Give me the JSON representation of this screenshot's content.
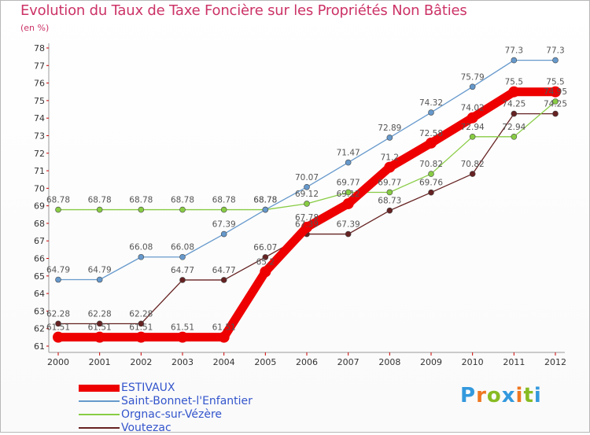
{
  "chart_data": {
    "type": "line",
    "title": "Evolution du Taux de Taxe Foncière sur les Propriétés Non Bâties",
    "subtitle": "(en %)",
    "xlabel": "",
    "ylabel": "(en %)",
    "x": [
      "2000",
      "2001",
      "2002",
      "2003",
      "2004",
      "2005",
      "2006",
      "2007",
      "2008",
      "2009",
      "2010",
      "2011",
      "2012"
    ],
    "ylim": [
      61,
      78
    ],
    "yticks": [
      61,
      62,
      63,
      64,
      65,
      66,
      67,
      68,
      69,
      70,
      71,
      72,
      73,
      74,
      75,
      76,
      77,
      78
    ],
    "grid": false,
    "legend_position": "bottom-left",
    "series": [
      {
        "name": "ESTIVAUX",
        "color": "#ee0000",
        "width": 11,
        "marker": 7,
        "values": [
          61.51,
          61.51,
          61.51,
          61.51,
          61.51,
          65.24,
          67.78,
          69.12,
          71.2,
          72.58,
          74.02,
          75.5,
          75.5
        ],
        "labels": [
          "61.51",
          "61.51",
          "61.51",
          "61.51",
          "61.51",
          "65.2",
          "67.78",
          "69.12",
          "71.2",
          "72.58",
          "74.02",
          "75.5",
          "75.5"
        ]
      },
      {
        "name": "Saint-Bonnet-l'Enfantier",
        "color": "#6699cc",
        "width": 1.3,
        "marker": 3.5,
        "values": [
          64.79,
          64.79,
          66.08,
          66.08,
          67.39,
          68.78,
          70.07,
          71.47,
          72.89,
          74.32,
          75.79,
          77.3,
          77.3
        ],
        "labels": [
          "64.79",
          "64.79",
          "66.08",
          "66.08",
          "67.39",
          "68.78",
          "70.07",
          "71.47",
          "72.89",
          "74.32",
          "75.79",
          "77.3",
          "77.3"
        ]
      },
      {
        "name": "Orgnac-sur-Vézère",
        "color": "#88cc44",
        "width": 1.3,
        "marker": 3.5,
        "values": [
          68.78,
          68.78,
          68.78,
          68.78,
          68.78,
          68.78,
          69.12,
          69.77,
          69.77,
          70.82,
          72.94,
          72.94,
          74.95
        ],
        "labels": [
          "68.78",
          "68.78",
          "68.78",
          "68.78",
          "68.78",
          "68.78",
          "69.12",
          "69.77",
          "69.77",
          "70.82",
          "72.94",
          "72.94",
          "74.95"
        ]
      },
      {
        "name": "Voutezac",
        "color": "#662222",
        "width": 1.3,
        "marker": 3.5,
        "values": [
          62.28,
          62.28,
          62.28,
          64.77,
          64.77,
          66.07,
          67.39,
          67.39,
          68.73,
          69.76,
          70.82,
          74.25,
          74.25
        ],
        "labels": [
          "62.28",
          "62.28",
          "62.28",
          "64.77",
          "64.77",
          "66.07",
          "67.39",
          "67.39",
          "68.73",
          "69.76",
          "70.82",
          "74.25",
          "74.25"
        ]
      }
    ]
  },
  "brand": {
    "letters": [
      "P",
      "r",
      "o",
      "x",
      "i",
      "t",
      "i"
    ],
    "colors": [
      "#3399dd",
      "#ee7722",
      "#88bb22",
      "#3399dd",
      "#ee7722",
      "#88bb22",
      "#3399dd"
    ]
  }
}
